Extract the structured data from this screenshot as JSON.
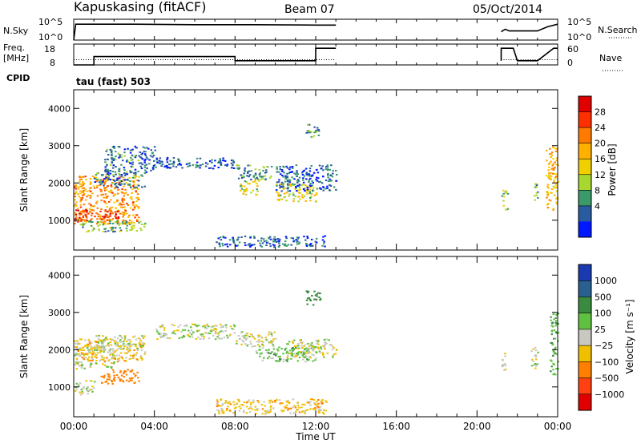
{
  "header": {
    "station": "Kapuskasing (fitACF)",
    "beam": "Beam 07",
    "date": "05/Oct/2014"
  },
  "top_panels": {
    "nsky_label": "N.Sky",
    "nsky_ticks": [
      "10^5",
      "10^0"
    ],
    "nsearch_label": "N.Search",
    "nsearch_ticks": [
      "10^5",
      "10^0"
    ],
    "freq_label_1": "Freq.",
    "freq_label_2": "[MHz]",
    "freq_ticks": [
      "18",
      "8"
    ],
    "nave_label": "Nave",
    "nave_ticks": [
      "60",
      "0"
    ],
    "cpid_label": "CPID",
    "cpid_value": "tau (fast) 503"
  },
  "power_panel": {
    "ylabel": "Slant Range [km]",
    "yticks": [
      "4000",
      "3000",
      "2000",
      "1000"
    ],
    "cbar_label": "Power [dB]",
    "cbar_ticks": [
      "28",
      "24",
      "20",
      "16",
      "12",
      "8",
      "4"
    ],
    "cbar_colors": [
      "#e00000",
      "#ff3000",
      "#ff7a00",
      "#ffb000",
      "#f0d000",
      "#a8d830",
      "#3a9a6a",
      "#2a5aa0",
      "#0018ff"
    ]
  },
  "velocity_panel": {
    "ylabel": "Slant Range [km]",
    "yticks": [
      "4000",
      "3000",
      "2000",
      "1000"
    ],
    "cbar_label": "Velocity [m s⁻¹]",
    "cbar_ticks": [
      "1000",
      "500",
      "100",
      "25",
      "−25",
      "−100",
      "−500",
      "−1000"
    ],
    "cbar_colors": [
      "#1a3ab0",
      "#2a6090",
      "#3a8a40",
      "#60c040",
      "#c8c8c0",
      "#f0c000",
      "#ff8000",
      "#ff4010",
      "#e00000"
    ]
  },
  "xaxis": {
    "ticks": [
      "00:00",
      "04:00",
      "08:00",
      "12:00",
      "16:00",
      "20:00",
      "00:00"
    ],
    "label": "Time UT"
  },
  "chart_data": [
    {
      "type": "line",
      "panel": "noise",
      "series": [
        {
          "name": "N.Sky",
          "x_hours": [
            0.0,
            0.1,
            3.0,
            6.0,
            9.0,
            12.0,
            13.0,
            21.2,
            21.4,
            21.6,
            23.0,
            23.5,
            24.0
          ],
          "values_log10": [
            0,
            3.8,
            3.8,
            3.7,
            3.7,
            3.6,
            3.6,
            2.0,
            2.6,
            2.2,
            2.2,
            3.2,
            3.8
          ]
        }
      ],
      "ylabel": "N.Sky",
      "y2label": "N.Search",
      "ylim": [
        0,
        5
      ]
    },
    {
      "type": "line",
      "panel": "frequency",
      "series": [
        {
          "name": "Freq.",
          "x_hours": [
            0.0,
            1.0,
            1.0,
            8.0,
            8.0,
            12.0,
            12.0,
            13.0,
            21.2,
            21.2,
            21.8,
            22.0,
            23.0,
            23.8,
            24.0
          ],
          "values": [
            8,
            8,
            12,
            12,
            10,
            10,
            16,
            16,
            10,
            16,
            16,
            10,
            10,
            16,
            16
          ]
        },
        {
          "name": "Nave",
          "x_hours": [
            0.0,
            13.0,
            21.2,
            24.0
          ],
          "values": [
            15,
            15,
            15,
            15
          ]
        }
      ],
      "ylabel": "Freq. [MHz]",
      "ylim": [
        8,
        18
      ],
      "y2label": "Nave",
      "y2lim": [
        0,
        60
      ]
    },
    {
      "type": "heatmap",
      "panel": "power",
      "title": "",
      "xlabel": "Time UT",
      "ylabel": "Slant Range [km]",
      "xlim_hours": [
        0,
        24
      ],
      "ylim_km": [
        200,
        4500
      ],
      "zlabel": "Power [dB]",
      "zlim": [
        0,
        30
      ],
      "regions": [
        {
          "t": [
            0.0,
            3.2
          ],
          "r": [
            900,
            2200
          ],
          "z": 20
        },
        {
          "t": [
            0.0,
            2.2
          ],
          "r": [
            1000,
            1300
          ],
          "z": 26
        },
        {
          "t": [
            1.0,
            3.5
          ],
          "r": [
            1900,
            2300
          ],
          "z": 6
        },
        {
          "t": [
            0.3,
            3.5
          ],
          "r": [
            700,
            1000
          ],
          "z": 10
        },
        {
          "t": [
            1.5,
            4.0
          ],
          "r": [
            2300,
            3000
          ],
          "z": 6
        },
        {
          "t": [
            4.0,
            8.0
          ],
          "r": [
            2400,
            2700
          ],
          "z": 5
        },
        {
          "t": [
            7.0,
            12.5
          ],
          "r": [
            300,
            600
          ],
          "z": 5
        },
        {
          "t": [
            8.0,
            9.8
          ],
          "r": [
            2100,
            2500
          ],
          "z": 8
        },
        {
          "t": [
            8.2,
            9.2
          ],
          "r": [
            1700,
            2100
          ],
          "z": 14
        },
        {
          "t": [
            10.0,
            12.0
          ],
          "r": [
            1500,
            2000
          ],
          "z": 14
        },
        {
          "t": [
            10.0,
            13.0
          ],
          "r": [
            1800,
            2500
          ],
          "z": 5
        },
        {
          "t": [
            11.5,
            12.2
          ],
          "r": [
            3200,
            3600
          ],
          "z": 8
        },
        {
          "t": [
            21.2,
            21.5
          ],
          "r": [
            1300,
            1900
          ],
          "z": 12
        },
        {
          "t": [
            22.8,
            23.0
          ],
          "r": [
            1500,
            2000
          ],
          "z": 10
        },
        {
          "t": [
            23.4,
            24.0
          ],
          "r": [
            1300,
            3000
          ],
          "z": 18
        }
      ]
    },
    {
      "type": "heatmap",
      "panel": "velocity",
      "title": "",
      "xlabel": "Time UT",
      "ylabel": "Slant Range [km]",
      "xlim_hours": [
        0,
        24
      ],
      "ylim_km": [
        200,
        4500
      ],
      "zlabel": "Velocity [m s⁻¹]",
      "zlim": [
        -1000,
        1000
      ],
      "regions": [
        {
          "t": [
            0.0,
            1.0
          ],
          "r": [
            800,
            1200
          ],
          "z": 0
        },
        {
          "t": [
            0.0,
            2.0
          ],
          "r": [
            1500,
            1700
          ],
          "z": 0
        },
        {
          "t": [
            0.0,
            2.0
          ],
          "r": [
            1800,
            2100
          ],
          "z": 0
        },
        {
          "t": [
            1.3,
            3.2
          ],
          "r": [
            1100,
            1500
          ],
          "z": -400
        },
        {
          "t": [
            0.0,
            3.5
          ],
          "r": [
            1700,
            2300
          ],
          "z": -60
        },
        {
          "t": [
            1.0,
            3.5
          ],
          "r": [
            2000,
            2400
          ],
          "z": 0
        },
        {
          "t": [
            4.0,
            8.0
          ],
          "r": [
            2300,
            2700
          ],
          "z": 0
        },
        {
          "t": [
            7.0,
            12.5
          ],
          "r": [
            300,
            700
          ],
          "z": -60
        },
        {
          "t": [
            8.0,
            10.0
          ],
          "r": [
            2100,
            2500
          ],
          "z": 0
        },
        {
          "t": [
            9.0,
            12.0
          ],
          "r": [
            1700,
            2100
          ],
          "z": 60
        },
        {
          "t": [
            10.5,
            13.0
          ],
          "r": [
            1800,
            2300
          ],
          "z": 0
        },
        {
          "t": [
            11.5,
            12.2
          ],
          "r": [
            3200,
            3600
          ],
          "z": 200
        },
        {
          "t": [
            21.2,
            21.4
          ],
          "r": [
            1300,
            2000
          ],
          "z": 0
        },
        {
          "t": [
            22.6,
            23.0
          ],
          "r": [
            1500,
            2100
          ],
          "z": 0
        },
        {
          "t": [
            23.6,
            24.0
          ],
          "r": [
            1300,
            3000
          ],
          "z": 80
        }
      ]
    }
  ]
}
